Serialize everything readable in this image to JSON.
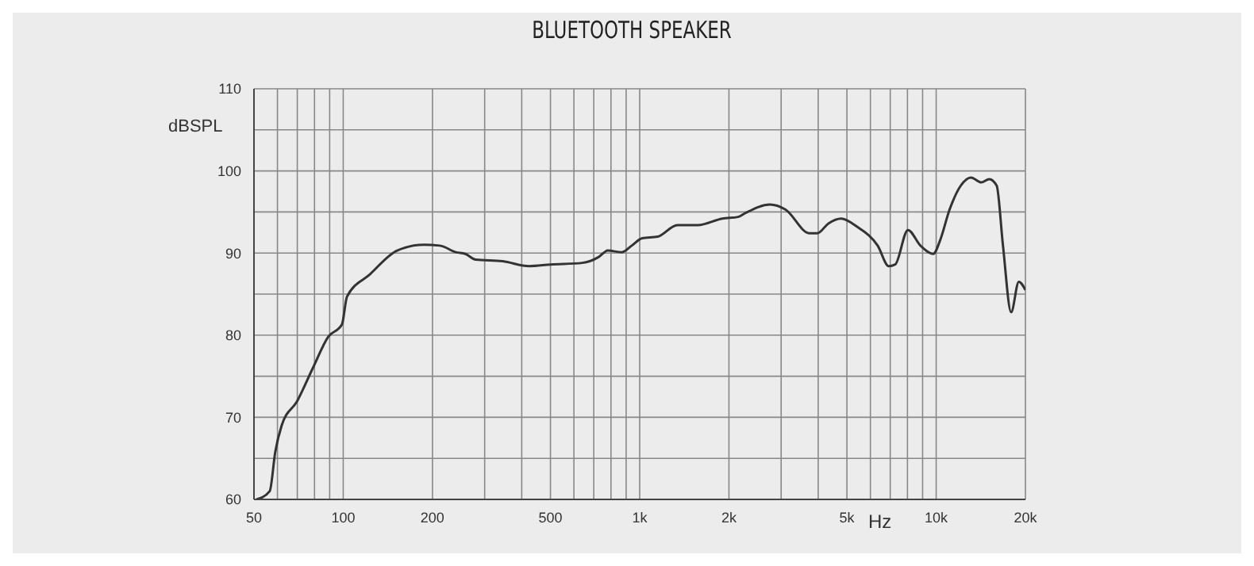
{
  "chart_data": {
    "type": "line",
    "title": "BLUETOOTH SPEAKER",
    "xlabel": "Hz",
    "ylabel": "dBSPL",
    "log": "x",
    "grid": true,
    "legend": false,
    "marker": "none",
    "line_style": "solid",
    "xlim": [
      50,
      20000
    ],
    "ylim": [
      60,
      110
    ],
    "xticks": [
      50,
      {
        "value": 60,
        "label": null
      },
      {
        "value": 70,
        "label": null
      },
      {
        "value": 80,
        "label": null
      },
      {
        "value": 90,
        "label": null
      },
      100,
      200,
      {
        "value": 300,
        "label": null
      },
      {
        "value": 400,
        "label": null
      },
      500,
      {
        "value": 600,
        "label": null
      },
      {
        "value": 700,
        "label": null
      },
      {
        "value": 800,
        "label": null
      },
      {
        "value": 900,
        "label": null
      },
      {
        "value": 1000,
        "label": "1k"
      },
      {
        "value": 2000,
        "label": "2k"
      },
      {
        "value": 3000,
        "label": null
      },
      {
        "value": 4000,
        "label": null
      },
      {
        "value": 5000,
        "label": "5k"
      },
      {
        "value": 6000,
        "label": null
      },
      {
        "value": 7000,
        "label": null
      },
      {
        "value": 8000,
        "label": null
      },
      {
        "value": 9000,
        "label": null
      },
      {
        "value": 10000,
        "label": "10k"
      },
      {
        "value": 20000,
        "label": "20k"
      }
    ],
    "yticks": [
      60,
      {
        "value": 65,
        "label": null
      },
      70,
      {
        "value": 75,
        "label": null
      },
      80,
      {
        "value": 85,
        "label": null
      },
      90,
      {
        "value": 95,
        "label": null
      },
      100,
      {
        "value": 105,
        "label": null
      },
      110
    ],
    "series": [
      {
        "color": "#333333",
        "x": [
          51,
          56.5,
          59,
          62,
          70,
          79,
          89,
          99,
          103,
          123,
          152,
          187,
          212,
          240,
          258,
          280,
          345,
          424,
          500,
          640,
          726,
          780,
          870,
          940,
          1020,
          1150,
          1340,
          1570,
          1900,
          2150,
          2280,
          2750,
          3100,
          3740,
          3970,
          4330,
          4780,
          5410,
          6350,
          6920,
          7270,
          8030,
          8850,
          9780,
          10300,
          11100,
          12100,
          13100,
          14200,
          15100,
          16000,
          16800,
          17900,
          19000,
          20000
        ],
        "values": [
          60,
          61,
          65.8,
          69,
          72,
          76,
          79.8,
          81.3,
          84.7,
          87.4,
          90.3,
          91,
          90.9,
          90.1,
          89.9,
          89.2,
          89,
          88.4,
          88.6,
          88.8,
          89.5,
          90.3,
          90.1,
          90.9,
          91.8,
          92,
          93.4,
          93.4,
          94.2,
          94.4,
          94.9,
          95.9,
          95.3,
          92.4,
          92.4,
          93.6,
          94.2,
          93.2,
          90.9,
          88.4,
          88.6,
          92.8,
          90.9,
          89.9,
          91.5,
          95.3,
          98.2,
          99.2,
          98.6,
          99,
          98.2,
          90.9,
          82.8,
          86.5,
          85.5
        ]
      }
    ]
  }
}
